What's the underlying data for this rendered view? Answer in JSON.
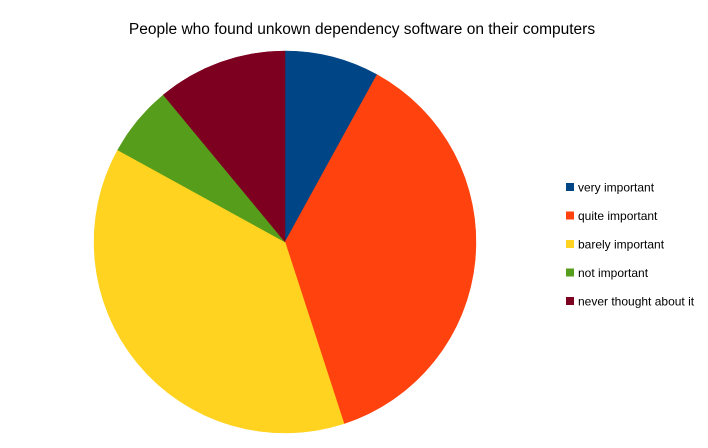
{
  "chart_data": {
    "type": "pie",
    "title": "People who found unkown dependency software on their computers",
    "legend_position": "right",
    "start_angle_deg": 0,
    "direction": "clockwise",
    "slices": [
      {
        "label": "very important",
        "value": 8,
        "color": "#004586"
      },
      {
        "label": "quite important",
        "value": 37,
        "color": "#ff420e"
      },
      {
        "label": "barely important",
        "value": 38,
        "color": "#ffd320"
      },
      {
        "label": "not important",
        "value": 6,
        "color": "#579d1c"
      },
      {
        "label": "never thought about it",
        "value": 11,
        "color": "#7e0021"
      }
    ]
  }
}
